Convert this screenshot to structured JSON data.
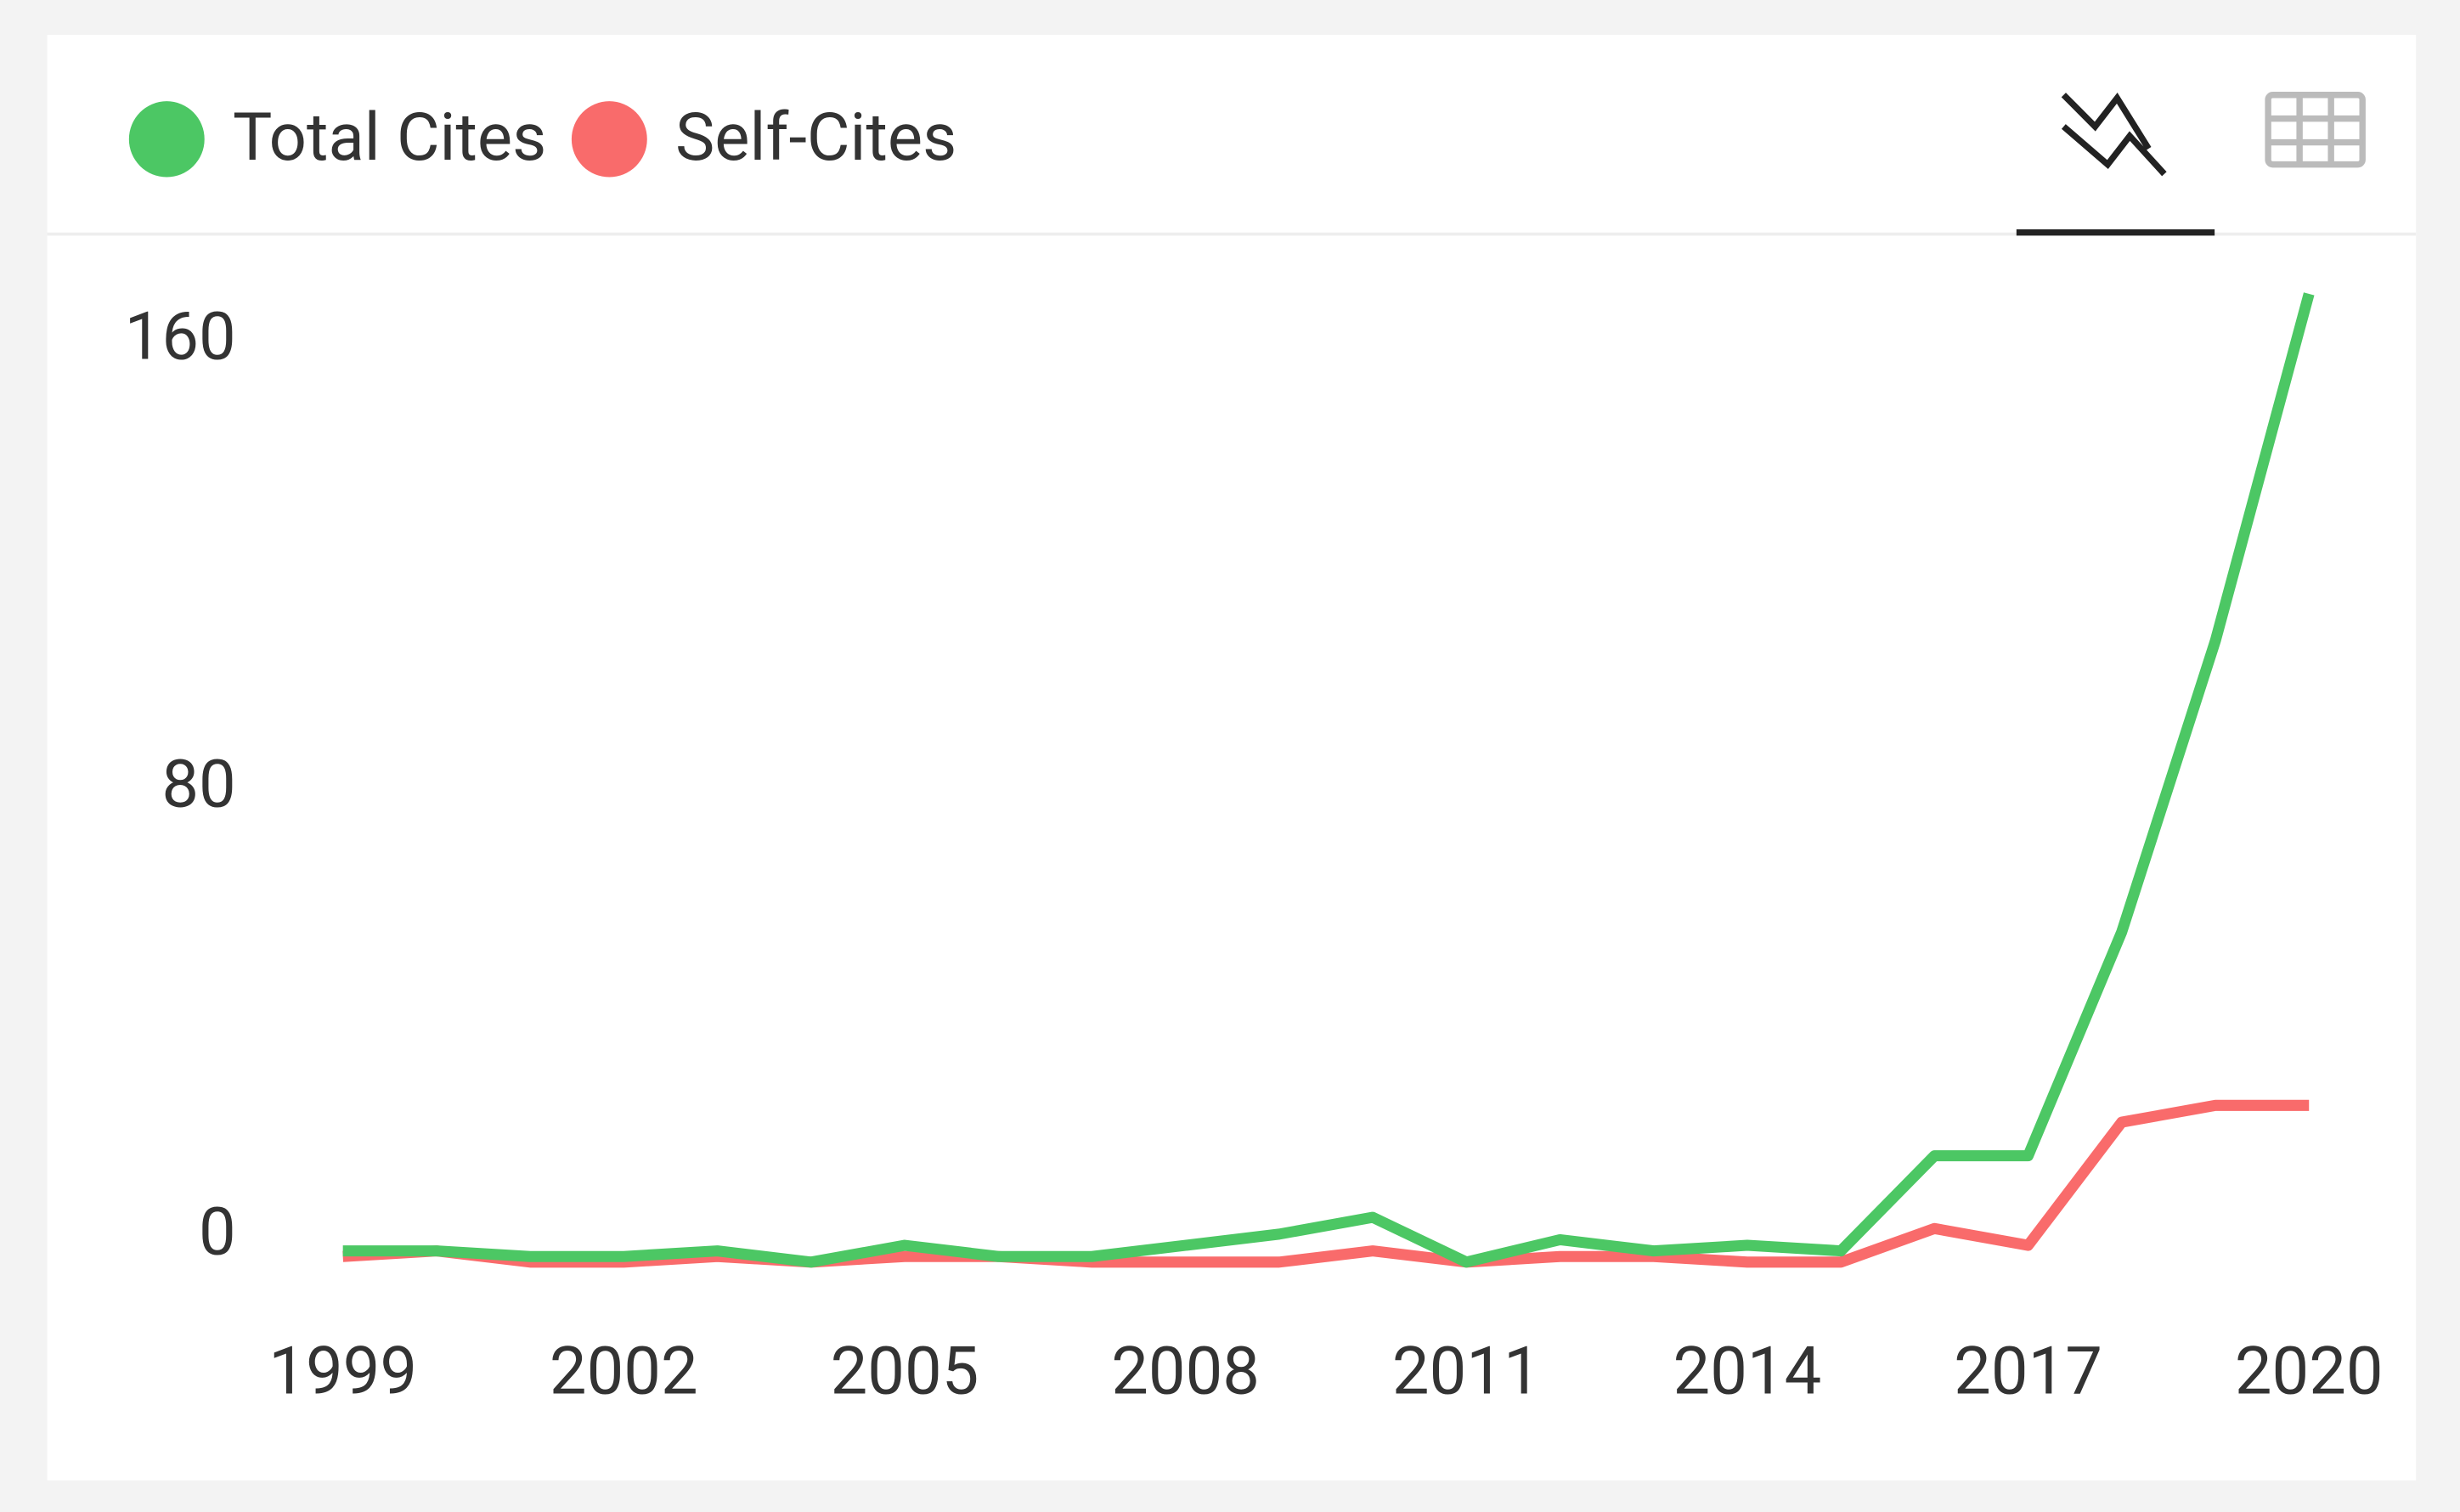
{
  "chart_data": {
    "type": "line",
    "x": [
      1999,
      2000,
      2001,
      2002,
      2003,
      2004,
      2005,
      2006,
      2007,
      2008,
      2009,
      2010,
      2011,
      2012,
      2013,
      2014,
      2015,
      2016,
      2017,
      2018,
      2019,
      2020
    ],
    "series": [
      {
        "name": "Total Cites",
        "color": "#4cc764",
        "values": [
          2,
          2,
          1,
          1,
          2,
          0,
          3,
          1,
          1,
          3,
          5,
          8,
          0,
          4,
          2,
          3,
          2,
          19,
          19,
          59,
          111,
          173
        ]
      },
      {
        "name": "Self-Cites",
        "color": "#f96b6b",
        "values": [
          1,
          2,
          0,
          0,
          1,
          0,
          1,
          1,
          0,
          0,
          0,
          2,
          0,
          1,
          1,
          0,
          0,
          6,
          3,
          25,
          28,
          28
        ]
      }
    ],
    "xlim": [
      1999,
      2020
    ],
    "xticks": [
      1999,
      2002,
      2005,
      2008,
      2011,
      2014,
      2017,
      2020
    ],
    "ylim": [
      0,
      180
    ],
    "yticks": [
      0,
      80,
      160
    ],
    "grid": false
  }
}
